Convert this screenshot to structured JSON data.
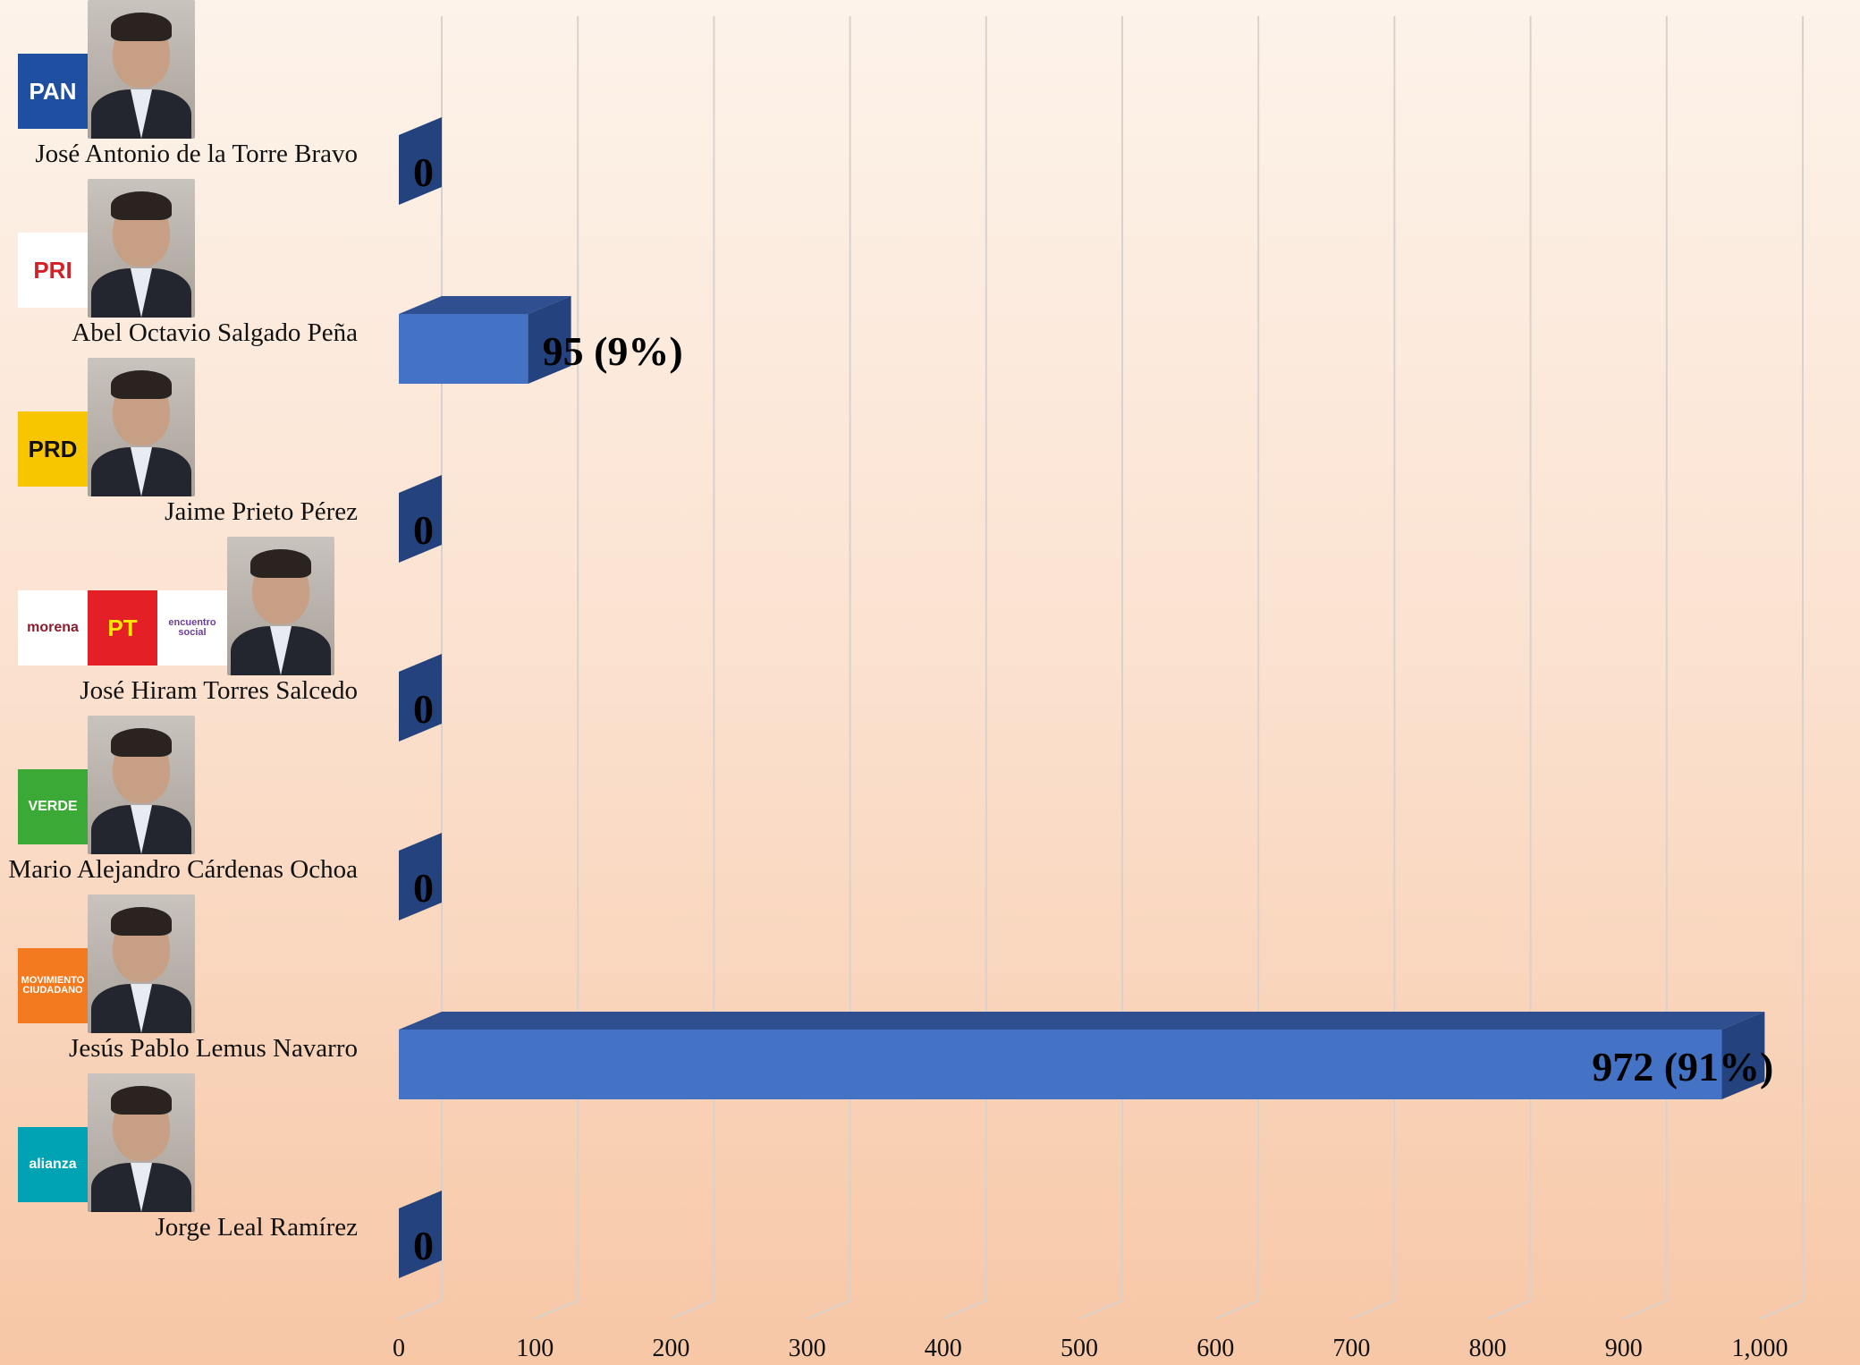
{
  "chart_data": {
    "type": "bar",
    "orientation": "horizontal",
    "style": "3d",
    "categories": [
      "José Antonio de la Torre Bravo",
      "Abel Octavio Salgado Peña",
      "Jaime Prieto Pérez",
      "José Hiram Torres Salcedo",
      "Mario Alejandro Cárdenas Ochoa",
      "Jesús Pablo Lemus Navarro",
      "Jorge Leal Ramírez"
    ],
    "values": [
      0,
      95,
      0,
      0,
      0,
      972,
      0
    ],
    "data_labels": [
      "0",
      "95 (9%)",
      "0",
      "0",
      "0",
      "972 (91%)",
      "0"
    ],
    "xlim": [
      0,
      1000
    ],
    "x_ticks": [
      "0",
      "100",
      "200",
      "300",
      "400",
      "500",
      "600",
      "700",
      "800",
      "900",
      "1,000"
    ],
    "grid": true,
    "bar_color": "#4472c4",
    "bar_top_color": "#2f4f91",
    "bar_side_color": "#24427d"
  },
  "candidates": [
    {
      "name": "José Antonio de la Torre Bravo",
      "party_logos": [
        {
          "icon": "pan-logo",
          "text": "PAN",
          "bg": "#1f4fa0",
          "fg": "#ffffff"
        }
      ]
    },
    {
      "name": "Abel Octavio Salgado Peña",
      "party_logos": [
        {
          "icon": "pri-logo",
          "text": "PRI",
          "bg": "#ffffff",
          "fg": "#d32027"
        }
      ]
    },
    {
      "name": "Jaime Prieto Pérez",
      "party_logos": [
        {
          "icon": "prd-logo",
          "text": "PRD",
          "bg": "#f8c600",
          "fg": "#111111"
        }
      ]
    },
    {
      "name": "José Hiram Torres Salcedo",
      "party_logos": [
        {
          "icon": "morena-logo",
          "text": "morena",
          "bg": "#ffffff",
          "fg": "#8c1d2f"
        },
        {
          "icon": "pt-logo",
          "text": "PT",
          "bg": "#e41f26",
          "fg": "#ffe600"
        },
        {
          "icon": "encuentro-social-logo",
          "text": "encuentro social",
          "bg": "#ffffff",
          "fg": "#6a3f98"
        }
      ]
    },
    {
      "name": "Mario Alejandro Cárdenas Ochoa",
      "party_logos": [
        {
          "icon": "verde-logo",
          "text": "VERDE",
          "bg": "#3aa935",
          "fg": "#ffffff"
        }
      ]
    },
    {
      "name": "Jesús Pablo Lemus Navarro",
      "party_logos": [
        {
          "icon": "movimiento-ciudadano-logo",
          "text": "MOVIMIENTO CIUDADANO",
          "bg": "#f47a20",
          "fg": "#ffffff"
        }
      ]
    },
    {
      "name": "Jorge Leal Ramírez",
      "party_logos": [
        {
          "icon": "nueva-alianza-logo",
          "text": "alianza",
          "bg": "#00a3b4",
          "fg": "#ffffff"
        }
      ]
    }
  ]
}
